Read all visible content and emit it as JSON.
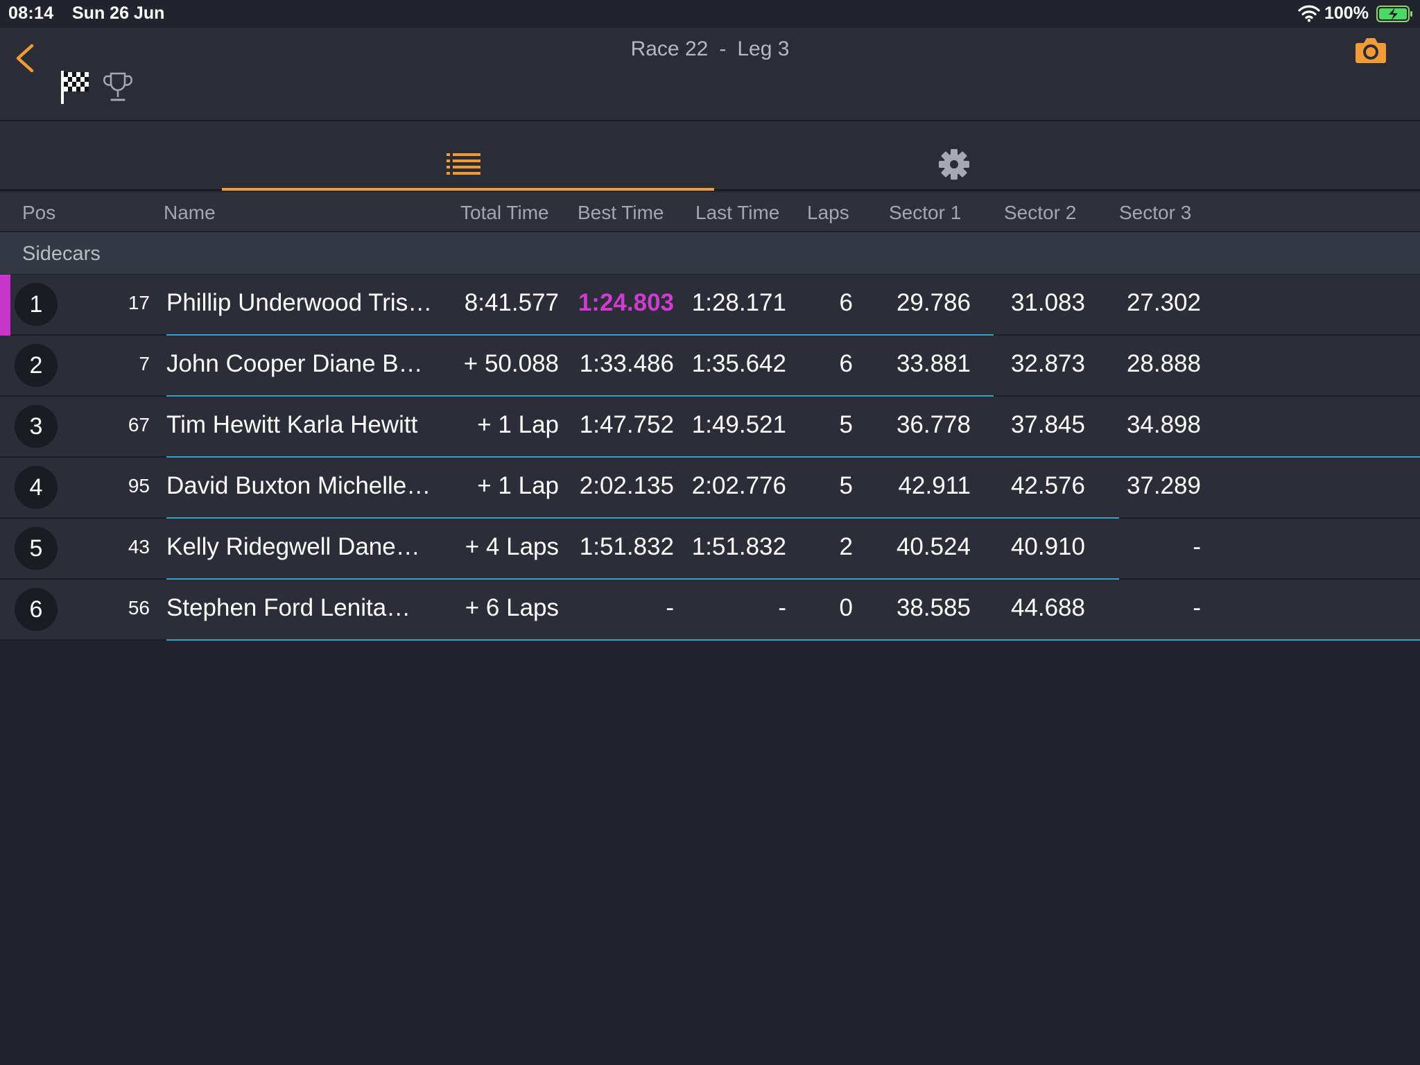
{
  "status_bar": {
    "time": "08:14",
    "date": "Sun 26 Jun",
    "battery": "100%"
  },
  "header": {
    "race": "Race 22",
    "separator": "-",
    "leg": "Leg 3"
  },
  "colors": {
    "accent": "#f19a38",
    "best_time": "#cf3bd0",
    "progress": "#3a9fcd"
  },
  "icons": {
    "back": "chevron-left-icon",
    "flag": "checkered-flag-icon",
    "trophy": "trophy-icon",
    "camera": "camera-icon",
    "list_tab": "list-icon",
    "settings_tab": "gear-icon"
  },
  "tabs": {
    "active": "list"
  },
  "columns": {
    "pos": "Pos",
    "name": "Name",
    "total": "Total Time",
    "best": "Best Time",
    "last": "Last Time",
    "laps": "Laps",
    "s1": "Sector 1",
    "s2": "Sector 2",
    "s3": "Sector 3"
  },
  "group": {
    "label": "Sidecars"
  },
  "rows": [
    {
      "pos": "1",
      "num": "17",
      "name": "Phillip Underwood Tris…",
      "total": "8:41.577",
      "best": "1:24.803",
      "last": "1:28.171",
      "laps": "6",
      "s1": "29.786",
      "s2": "31.083",
      "s3": "27.302",
      "leader": true,
      "best_overall": true,
      "progress": 0.66
    },
    {
      "pos": "2",
      "num": "7",
      "name": "John Cooper Diane B…",
      "total": "+ 50.088",
      "best": "1:33.486",
      "last": "1:35.642",
      "laps": "6",
      "s1": "33.881",
      "s2": "32.873",
      "s3": "28.888",
      "leader": false,
      "best_overall": false,
      "progress": 0.66
    },
    {
      "pos": "3",
      "num": "67",
      "name": "Tim Hewitt Karla Hewitt",
      "total": "+ 1 Lap",
      "best": "1:47.752",
      "last": "1:49.521",
      "laps": "5",
      "s1": "36.778",
      "s2": "37.845",
      "s3": "34.898",
      "leader": false,
      "best_overall": false,
      "progress": 1.0
    },
    {
      "pos": "4",
      "num": "95",
      "name": "David Buxton Michelle…",
      "total": "+ 1 Lap",
      "best": "2:02.135",
      "last": "2:02.776",
      "laps": "5",
      "s1": "42.911",
      "s2": "42.576",
      "s3": "37.289",
      "leader": false,
      "best_overall": false,
      "progress": 0.76
    },
    {
      "pos": "5",
      "num": "43",
      "name": "Kelly Ridegwell Dane…",
      "total": "+ 4 Laps",
      "best": "1:51.832",
      "last": "1:51.832",
      "laps": "2",
      "s1": "40.524",
      "s2": "40.910",
      "s3": "-",
      "leader": false,
      "best_overall": false,
      "progress": 0.76
    },
    {
      "pos": "6",
      "num": "56",
      "name": "Stephen Ford Lenita…",
      "total": "+ 6 Laps",
      "best": "-",
      "last": "-",
      "laps": "0",
      "s1": "38.585",
      "s2": "44.688",
      "s3": "-",
      "leader": false,
      "best_overall": false,
      "progress": 1.0
    }
  ]
}
